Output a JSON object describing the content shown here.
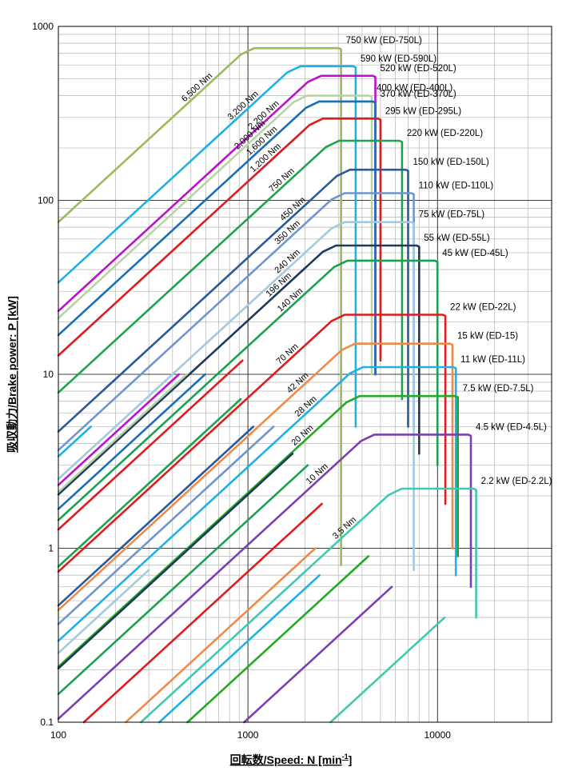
{
  "chart_data": {
    "type": "line",
    "title": "",
    "xlabel": "回転数/Speed: N [min",
    "xlabel_sup": "-1",
    "xlabel_end": "]",
    "ylabel": "吸収動力/Brake power: P [kW]",
    "xscale": "log",
    "yscale": "log",
    "xlim": [
      100,
      40000
    ],
    "ylim": [
      0.1,
      1000
    ],
    "grid": true,
    "x_ticks": [
      {
        "v": 100,
        "label": "100"
      },
      {
        "v": 1000,
        "label": "1000"
      },
      {
        "v": 10000,
        "label": "10000"
      }
    ],
    "y_ticks": [
      {
        "v": 0.1,
        "label": "0.1"
      },
      {
        "v": 1,
        "label": "1"
      },
      {
        "v": 10,
        "label": "10"
      },
      {
        "v": 100,
        "label": "100"
      },
      {
        "v": 1000,
        "label": "1000"
      }
    ],
    "models": [
      {
        "label": "750 kW (ED-750L)",
        "color": "#9bbb59",
        "p": 750,
        "nmax": 3100,
        "torque": "6,500 Nm",
        "corner_n": 1000,
        "end_p": 0.8,
        "end_n": 3100
      },
      {
        "label": "590 kW (ED-590L)",
        "color": "#1fb1e6",
        "p": 590,
        "nmax": 3700,
        "torque": "3,200 Nm",
        "corner_n": 1750,
        "end_p": 5,
        "end_n": 3700
      },
      {
        "label": "520 kW (ED-520L)",
        "color": "#bb11cc",
        "p": 520,
        "nmax": 4700,
        "torque": "2,200 Nm",
        "corner_n": 2250,
        "end_p": 10,
        "end_n": 4700
      },
      {
        "label": "400 kW (ED-400L)",
        "color": "#b8d3a6",
        "p": 400,
        "nmax": 4500,
        "torque": "2,000 Nm",
        "corner_n": 1900,
        "end_p": 10,
        "end_n": 4500
      },
      {
        "label": "370 kW (ED-370L)",
        "color": "#1a6eb5",
        "p": 370,
        "nmax": 4700,
        "torque": "1,600 Nm",
        "corner_n": 2200,
        "end_p": 10,
        "end_n": 4700
      },
      {
        "label": "295 kW (ED-295L)",
        "color": "#e01b1b",
        "p": 295,
        "nmax": 5000,
        "torque": "1,200 Nm",
        "corner_n": 2300,
        "end_p": 12,
        "end_n": 5000
      },
      {
        "label": "220 kW (ED-220L)",
        "color": "#1da34e",
        "p": 220,
        "nmax": 6500,
        "torque": "750 Nm",
        "corner_n": 2800,
        "end_p": 7.2,
        "end_n": 6500
      },
      {
        "label": "150 kW (ED-150L)",
        "color": "#2a5a9a",
        "p": 150,
        "nmax": 7000,
        "torque": "450 Nm",
        "corner_n": 3200,
        "end_p": 5,
        "end_n": 7000
      },
      {
        "label": "110 kW (ED-110L)",
        "color": "#6f95d1",
        "p": 110,
        "nmax": 7500,
        "torque": "350 Nm",
        "corner_n": 3000,
        "end_p": 5,
        "end_n": 7500
      },
      {
        "label": "75 kW (ED-75L)",
        "color": "#a4c8dc",
        "p": 75,
        "nmax": 7500,
        "torque": "240 Nm",
        "corner_n": 3000,
        "end_p": 0.75,
        "end_n": 7500
      },
      {
        "label": "55 kW (ED-55L)",
        "color": "#1e3a5a",
        "p": 55,
        "nmax": 8000,
        "torque": "196 Nm",
        "corner_n": 2700,
        "end_p": 3.5,
        "end_n": 8000
      },
      {
        "label": "45 kW (ED-45L)",
        "color": "#1aa050",
        "p": 45,
        "nmax": 10000,
        "torque": "140 Nm",
        "corner_n": 3100,
        "end_p": 3,
        "end_n": 10000
      },
      {
        "label": "22 kW (ED-22L)",
        "color": "#e01b1b",
        "p": 22,
        "nmax": 11000,
        "torque": "70 Nm",
        "corner_n": 3000,
        "end_p": 1.8,
        "end_n": 11000
      },
      {
        "label": "15 kW (ED-15)",
        "color": "#f08a4a",
        "p": 15,
        "nmax": 12000,
        "torque": "42 Nm",
        "corner_n": 3400,
        "end_p": 1,
        "end_n": 12000
      },
      {
        "label": "11 kW (ED-11L)",
        "color": "#1fb1e6",
        "p": 11,
        "nmax": 12500,
        "torque": "28 Nm",
        "corner_n": 3750,
        "end_p": 0.7,
        "end_n": 12500
      },
      {
        "label": "7.5 kW (ED-7.5L)",
        "color": "#22aa22",
        "p": 7.5,
        "nmax": 12800,
        "torque": "20 Nm",
        "corner_n": 3600,
        "end_p": 0.9,
        "end_n": 12800
      },
      {
        "label": "4.5 kW (ED-4.5L)",
        "color": "#7a3fb0",
        "p": 4.5,
        "nmax": 15000,
        "torque": "10 Nm",
        "corner_n": 4300,
        "end_p": 0.6,
        "end_n": 15000
      },
      {
        "label": "2.2 kW (ED-2.2L)",
        "color": "#3ec9b0",
        "p": 2.2,
        "nmax": 16000,
        "torque": "3.5 Nm",
        "corner_n": 6000,
        "end_p": 0.4,
        "end_n": 16000
      }
    ]
  }
}
